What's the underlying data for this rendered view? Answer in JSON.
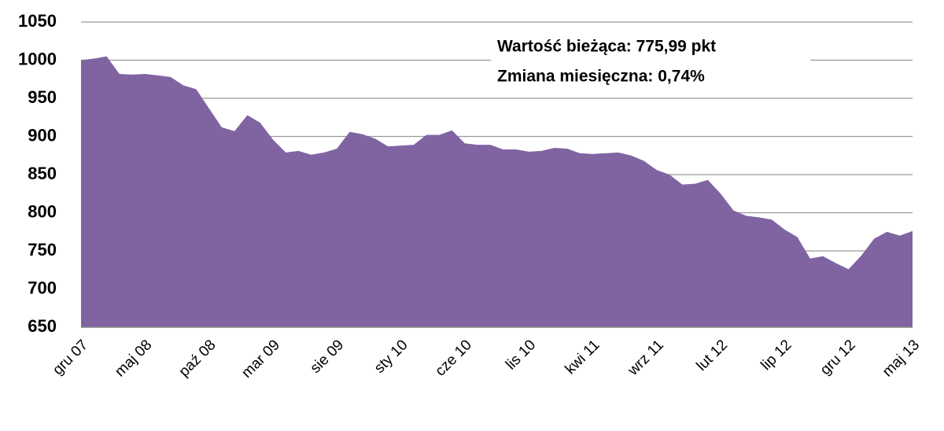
{
  "chart_data": {
    "type": "area",
    "categories": [
      "gru 07",
      null,
      null,
      null,
      null,
      "maj 08",
      null,
      null,
      null,
      null,
      "paź 08",
      null,
      null,
      null,
      null,
      "mar 09",
      null,
      null,
      null,
      null,
      "sie 09",
      null,
      null,
      null,
      null,
      "sty 10",
      null,
      null,
      null,
      null,
      "cze 10",
      null,
      null,
      null,
      null,
      "lis 10",
      null,
      null,
      null,
      null,
      "kwi 11",
      null,
      null,
      null,
      null,
      "wrz 11",
      null,
      null,
      null,
      null,
      "lut 12",
      null,
      null,
      null,
      null,
      "lip 12",
      null,
      null,
      null,
      null,
      "gru 12",
      null,
      null,
      null,
      null,
      "maj 13"
    ],
    "values": [
      1000,
      1002,
      1005,
      982,
      981,
      982,
      980,
      978,
      967,
      962,
      937,
      912,
      907,
      928,
      918,
      896,
      879,
      881,
      876,
      879,
      884,
      906,
      903,
      897,
      887,
      888,
      889,
      902,
      902,
      908,
      891,
      889,
      889,
      883,
      883,
      880,
      881,
      885,
      884,
      878,
      877,
      878,
      879,
      875,
      868,
      856,
      850,
      837,
      838,
      843,
      825,
      803,
      796,
      794,
      791,
      778,
      768,
      740,
      743,
      734,
      726,
      744,
      766,
      775,
      770,
      776
    ],
    "color": "#8064a2",
    "ylim": [
      650,
      1050
    ],
    "yticks": [
      650,
      700,
      750,
      800,
      850,
      900,
      950,
      1000,
      1050
    ],
    "grid": true,
    "annotations": [
      "Wartość bieżąca: 775,99 pkt",
      "Zmiana miesięczna: 0,74%"
    ]
  }
}
